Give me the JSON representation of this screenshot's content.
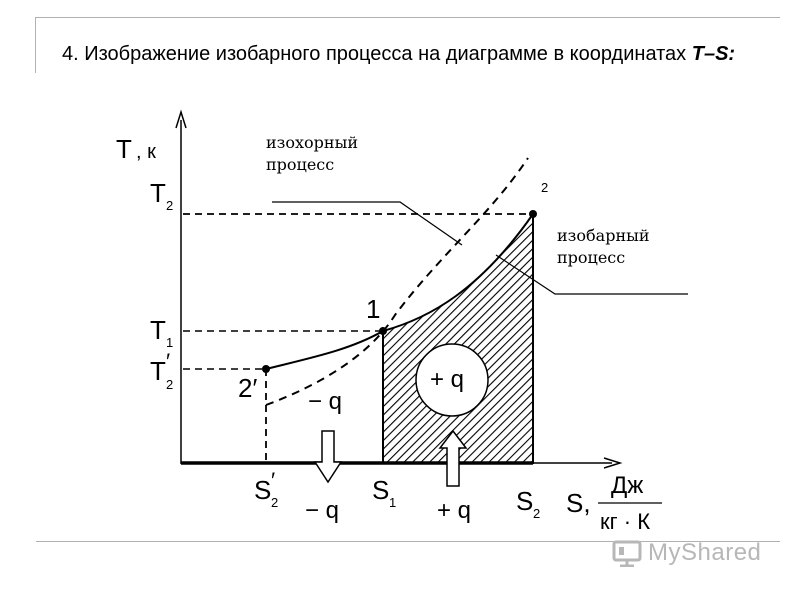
{
  "slide": {
    "title_prefix": "4. Изображение изобарного процесса на диаграмме в координатах ",
    "title_emph": "T–S:"
  },
  "axes": {
    "y_label": "T",
    "y_unit": ", к",
    "x_label": "S,",
    "x_unit_num": "Дж",
    "x_unit_den": "кг · К"
  },
  "ticks": {
    "t2": "T",
    "t2_sub": "2",
    "t1": "T",
    "t1_sub": "1",
    "t2p": "T",
    "t2p_sup": "′",
    "t2p_sub": "2",
    "s2p": "S",
    "s2p_sup": "′",
    "s2p_sub": "2",
    "s1": "S",
    "s1_sub": "1",
    "s2": "S",
    "s2_sub": "2"
  },
  "points": {
    "p1": "1",
    "p2": "2",
    "p2p": "2′"
  },
  "annotations": {
    "isochoric_1": "изохорный",
    "isochoric_2": "процесс",
    "isobaric_1": "изобарный",
    "isobaric_2": "процесс",
    "minus_q_upper": "− q",
    "minus_q_lower": "− q",
    "plus_q_circle": "+ q",
    "plus_q_lower": "+ q"
  },
  "watermark": {
    "text": "MyShared"
  },
  "colors": {
    "frame": "#c8b464",
    "watermark": "#b7b7b7"
  }
}
